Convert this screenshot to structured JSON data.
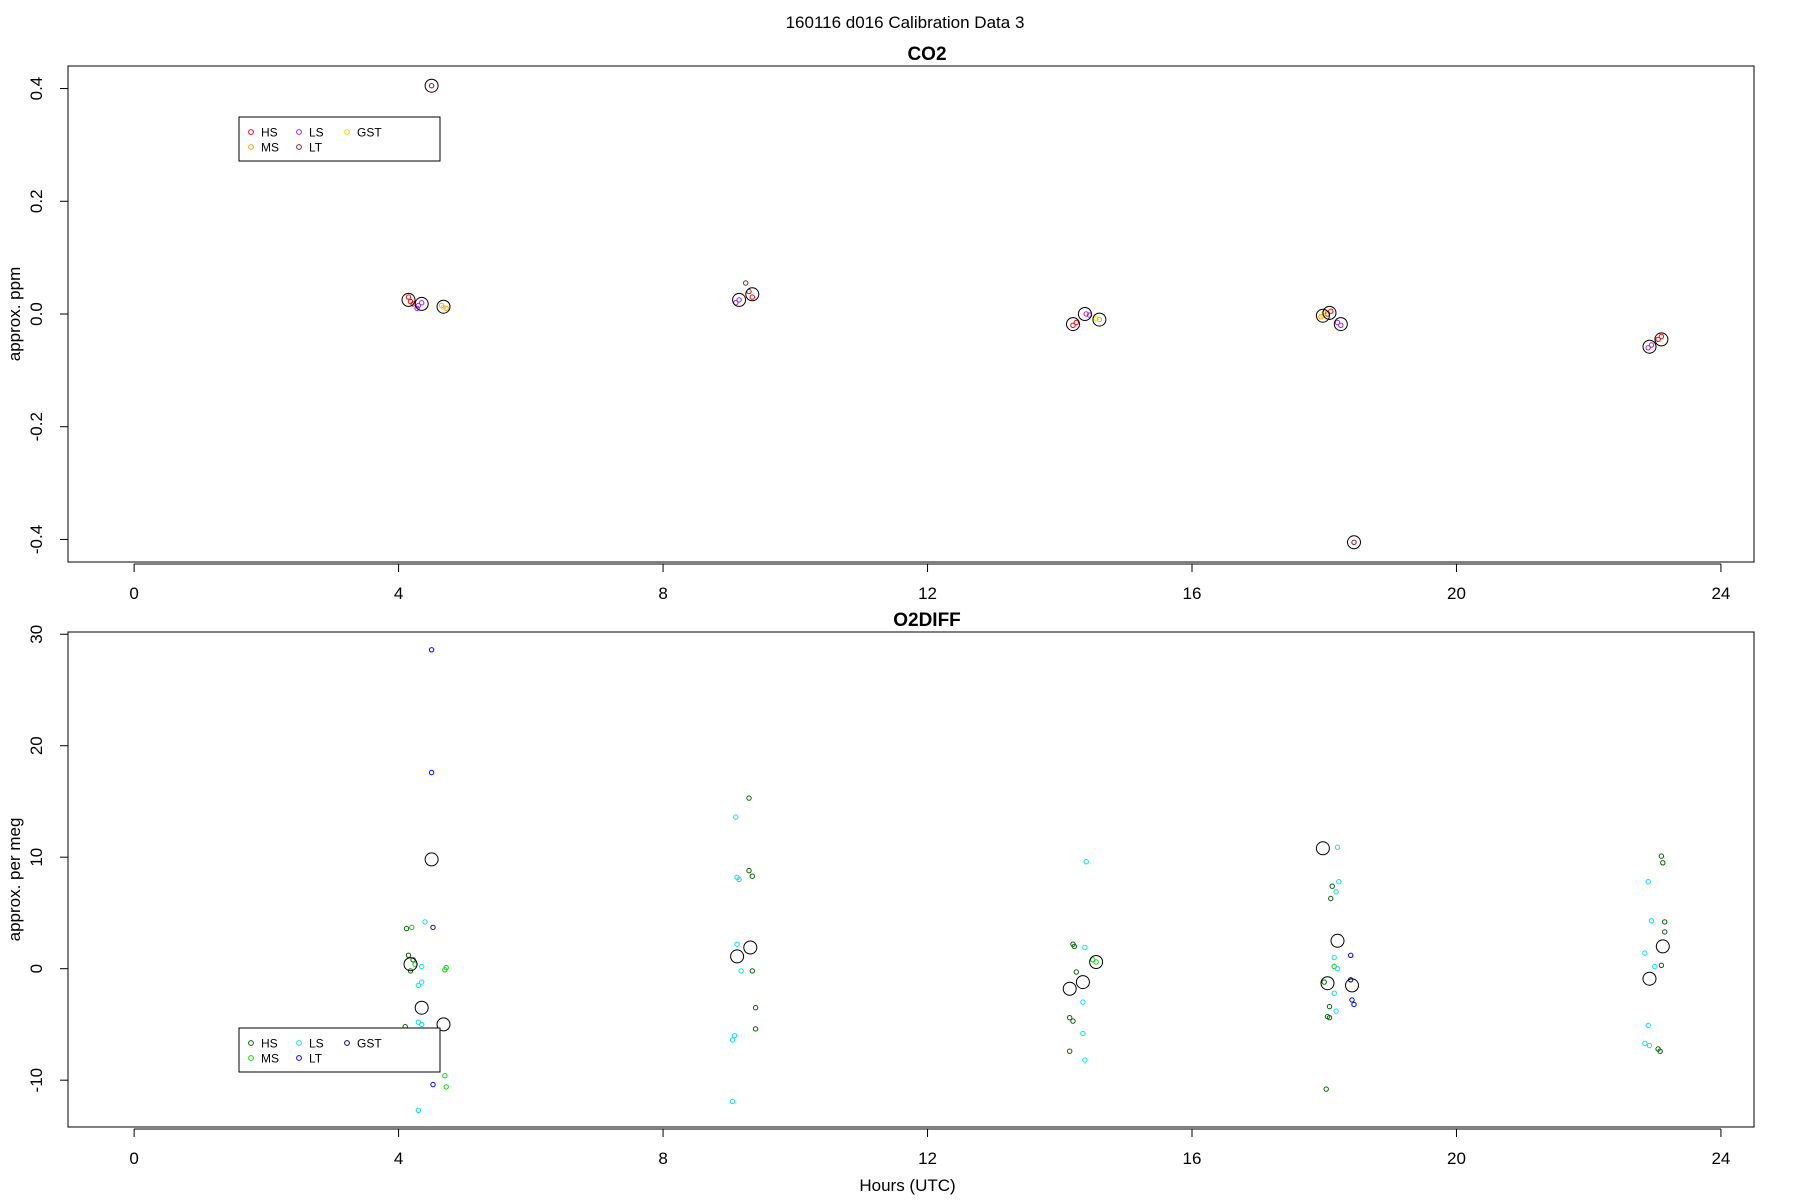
{
  "figure_title": "160116   d016   Calibration Data 3",
  "colors": {
    "HS_co2": "#ff0000",
    "MS_co2": "#ffa500",
    "LS_co2": "#a020f0",
    "LT_co2": "#8b2323",
    "GST_co2": "#ffd700",
    "HS_o2": "#006400",
    "MS_o2": "#00dd00",
    "LS_o2": "#00e5ee",
    "LT_o2": "#0000ff",
    "GST_o2": "#00008b",
    "mean_circle": "#000000"
  },
  "chart_data": [
    {
      "type": "scatter",
      "title": "CO2",
      "xlabel": "",
      "ylabel": "approx. ppm",
      "xlim": [
        -1,
        24.5
      ],
      "ylim": [
        -0.44,
        0.44
      ],
      "xticks": [
        0,
        4,
        8,
        12,
        16,
        20,
        24
      ],
      "yticks": [
        -0.4,
        -0.2,
        0.0,
        0.2,
        0.4
      ],
      "ytick_labels": [
        "-0.4",
        "-0.2",
        "0.0",
        "0.2",
        "0.4"
      ],
      "legend": {
        "position": "top-left",
        "entries": [
          "HS",
          "MS",
          "LS",
          "LT",
          "GST"
        ]
      },
      "series": [
        {
          "name": "HS",
          "color_key": "HS_co2",
          "points": [
            [
              4.15,
              0.03
            ],
            [
              4.18,
              0.022
            ],
            [
              4.22,
              0.018
            ],
            [
              9.3,
              0.04
            ],
            [
              9.35,
              0.03
            ],
            [
              14.2,
              -0.02
            ],
            [
              14.25,
              -0.015
            ],
            [
              18.05,
              0.0
            ],
            [
              18.1,
              0.005
            ],
            [
              23.05,
              -0.045
            ],
            [
              23.1,
              -0.04
            ]
          ]
        },
        {
          "name": "MS",
          "color_key": "MS_co2",
          "points": [
            [
              4.65,
              0.015
            ],
            [
              4.72,
              0.01
            ],
            [
              14.6,
              -0.01
            ],
            [
              17.95,
              -0.005
            ],
            [
              18.0,
              0.002
            ]
          ]
        },
        {
          "name": "LS",
          "color_key": "LS_co2",
          "points": [
            [
              4.3,
              0.015
            ],
            [
              4.35,
              0.02
            ],
            [
              4.28,
              0.01
            ],
            [
              9.1,
              0.02
            ],
            [
              9.15,
              0.025
            ],
            [
              14.4,
              0.0
            ],
            [
              14.45,
              -0.002
            ],
            [
              18.2,
              -0.015
            ],
            [
              18.25,
              -0.02
            ],
            [
              22.9,
              -0.06
            ],
            [
              22.95,
              -0.055
            ]
          ]
        },
        {
          "name": "LT",
          "color_key": "LT_co2",
          "points": [
            [
              4.5,
              0.405
            ],
            [
              18.45,
              -0.405
            ],
            [
              9.25,
              0.055
            ]
          ]
        },
        {
          "name": "GST",
          "color_key": "GST_co2",
          "points": [
            [
              4.68,
              0.012
            ],
            [
              14.55,
              -0.008
            ],
            [
              17.98,
              -0.003
            ]
          ]
        }
      ],
      "means": [
        [
          4.15,
          0.025
        ],
        [
          4.35,
          0.018
        ],
        [
          4.5,
          0.405
        ],
        [
          4.68,
          0.013
        ],
        [
          9.15,
          0.025
        ],
        [
          9.35,
          0.035
        ],
        [
          14.2,
          -0.018
        ],
        [
          14.38,
          0.0
        ],
        [
          14.6,
          -0.01
        ],
        [
          17.98,
          -0.003
        ],
        [
          18.08,
          0.002
        ],
        [
          18.25,
          -0.018
        ],
        [
          18.45,
          -0.405
        ],
        [
          22.92,
          -0.058
        ],
        [
          23.1,
          -0.045
        ]
      ]
    },
    {
      "type": "scatter",
      "title": "O2DIFF",
      "xlabel": "Hours (UTC)",
      "ylabel": "approx. per meg",
      "xlim": [
        -1,
        24.5
      ],
      "ylim": [
        -14.2,
        30.2
      ],
      "xticks": [
        0,
        4,
        8,
        12,
        16,
        20,
        24
      ],
      "yticks": [
        -10,
        0,
        10,
        20,
        30
      ],
      "ytick_labels": [
        "-10",
        "0",
        "10",
        "20",
        "30"
      ],
      "legend": {
        "position": "bottom-left",
        "entries": [
          "HS",
          "MS",
          "LS",
          "LT",
          "GST"
        ]
      },
      "series": [
        {
          "name": "HS",
          "color_key": "HS_o2",
          "points": [
            [
              4.12,
              3.6
            ],
            [
              4.15,
              1.2
            ],
            [
              4.18,
              -0.2
            ],
            [
              4.1,
              -5.2
            ],
            [
              4.22,
              0.8
            ],
            [
              9.3,
              15.3
            ],
            [
              9.3,
              8.8
            ],
            [
              9.35,
              8.3
            ],
            [
              9.35,
              -0.2
            ],
            [
              9.4,
              -3.5
            ],
            [
              9.4,
              -5.4
            ],
            [
              14.2,
              2.2
            ],
            [
              14.22,
              2.0
            ],
            [
              14.15,
              -4.4
            ],
            [
              14.2,
              -4.7
            ],
            [
              14.15,
              -7.4
            ],
            [
              14.25,
              -0.3
            ],
            [
              18.0,
              -1.2
            ],
            [
              18.05,
              -4.3
            ],
            [
              18.08,
              -4.4
            ],
            [
              18.1,
              6.3
            ],
            [
              18.12,
              7.4
            ],
            [
              18.08,
              -3.4
            ],
            [
              18.03,
              -10.8
            ],
            [
              23.1,
              10.1
            ],
            [
              23.12,
              9.5
            ],
            [
              23.15,
              4.2
            ],
            [
              23.15,
              3.3
            ],
            [
              23.1,
              0.3
            ],
            [
              23.05,
              -7.2
            ],
            [
              23.08,
              -7.4
            ]
          ]
        },
        {
          "name": "MS",
          "color_key": "MS_o2",
          "points": [
            [
              4.2,
              3.7
            ],
            [
              4.25,
              0.4
            ],
            [
              4.7,
              -0.1
            ],
            [
              4.72,
              0.1
            ],
            [
              4.7,
              -9.6
            ],
            [
              4.72,
              -10.6
            ],
            [
              14.5,
              0.8
            ],
            [
              14.55,
              0.6
            ],
            [
              18.15,
              0.2
            ]
          ]
        },
        {
          "name": "LS",
          "color_key": "LS_o2",
          "points": [
            [
              4.3,
              -1.5
            ],
            [
              4.35,
              -1.2
            ],
            [
              4.3,
              -4.8
            ],
            [
              4.35,
              -5.0
            ],
            [
              4.4,
              4.2
            ],
            [
              4.3,
              -12.7
            ],
            [
              4.35,
              0.2
            ],
            [
              9.1,
              13.6
            ],
            [
              9.15,
              8.0
            ],
            [
              9.12,
              8.2
            ],
            [
              9.05,
              -6.4
            ],
            [
              9.08,
              -6.0
            ],
            [
              9.05,
              -11.9
            ],
            [
              9.12,
              2.2
            ],
            [
              9.18,
              -0.2
            ],
            [
              14.4,
              9.6
            ],
            [
              14.38,
              1.9
            ],
            [
              14.35,
              -3.0
            ],
            [
              14.35,
              -5.8
            ],
            [
              14.38,
              -8.2
            ],
            [
              18.2,
              10.9
            ],
            [
              18.22,
              7.8
            ],
            [
              18.18,
              6.9
            ],
            [
              18.15,
              1.0
            ],
            [
              18.2,
              0.0
            ],
            [
              18.15,
              -2.2
            ],
            [
              18.18,
              -3.8
            ],
            [
              22.9,
              7.8
            ],
            [
              22.95,
              4.3
            ],
            [
              22.85,
              1.4
            ],
            [
              22.9,
              -5.1
            ],
            [
              22.85,
              -6.7
            ],
            [
              22.92,
              -6.9
            ],
            [
              23.0,
              0.2
            ]
          ]
        },
        {
          "name": "LT",
          "color_key": "LT_o2",
          "points": [
            [
              4.5,
              28.6
            ],
            [
              4.5,
              17.6
            ],
            [
              4.52,
              3.7
            ],
            [
              4.52,
              -10.4
            ],
            [
              18.4,
              1.2
            ],
            [
              18.42,
              -2.8
            ],
            [
              18.45,
              -3.2
            ]
          ]
        },
        {
          "name": "GST",
          "color_key": "GST_o2",
          "points": [
            [
              18.4,
              -1.0
            ]
          ]
        }
      ],
      "means": [
        [
          4.18,
          0.4
        ],
        [
          4.35,
          -3.5
        ],
        [
          4.5,
          9.8
        ],
        [
          4.68,
          -5.0
        ],
        [
          9.12,
          1.1
        ],
        [
          9.32,
          1.9
        ],
        [
          14.15,
          -1.8
        ],
        [
          14.35,
          -1.2
        ],
        [
          14.55,
          0.6
        ],
        [
          17.98,
          10.8
        ],
        [
          18.05,
          -1.3
        ],
        [
          18.2,
          2.5
        ],
        [
          18.42,
          -1.5
        ],
        [
          22.92,
          -0.9
        ],
        [
          23.12,
          2.0
        ]
      ]
    }
  ]
}
